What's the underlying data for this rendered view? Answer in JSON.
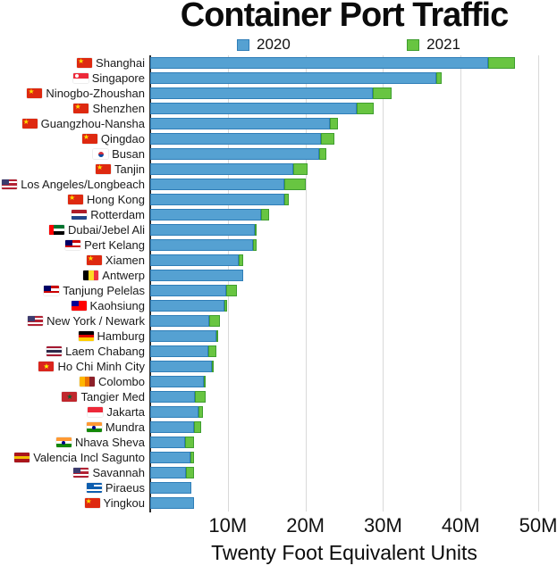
{
  "title": "Container Port Traffic",
  "xlabel": "Twenty Foot Equivalent Units",
  "legend": {
    "items": [
      {
        "label": "2020",
        "color": "#55A1D2",
        "border": "#2F7EB8"
      },
      {
        "label": "2021",
        "color": "#68C541",
        "border": "#3F9E2F"
      }
    ]
  },
  "colors": {
    "bar_2020_fill": "#55A1D2",
    "bar_2020_border": "#2F7EB8",
    "bar_2021_fill": "#68C541",
    "bar_2021_border": "#3F9E2F",
    "gridline": "#d9d9d9",
    "y_axis": "#2f2f2f"
  },
  "chart_data": {
    "type": "bar",
    "orientation": "horizontal",
    "title": "Container Port Traffic",
    "xlabel": "Twenty Foot Equivalent Units",
    "unit": "TEU (millions)",
    "xlim": [
      0,
      51.84
    ],
    "grid": true,
    "legend_position": "top",
    "x_ticks": [
      {
        "label": "10M",
        "value": 10
      },
      {
        "label": "20M",
        "value": 20
      },
      {
        "label": "30M",
        "value": 30
      },
      {
        "label": "40M",
        "value": 40
      },
      {
        "label": "50M",
        "value": 50
      }
    ],
    "categories": [
      "Shanghai",
      "Singapore",
      "Ninogbo-Zhoushan",
      "Shenzhen",
      "Guangzhou-Nansha",
      "Qingdao",
      "Busan",
      "Tanjin",
      "Los Angeles/Longbeach",
      "Hong Kong",
      "Rotterdam",
      "Dubai/Jebel Ali",
      "Pert Kelang",
      "Xiamen",
      "Antwerp",
      "Tanjung Pelelas",
      "Kaohsiung",
      "New York / Newark",
      "Hamburg",
      "Laem Chabang",
      "Ho Chi Minh City",
      "Colombo",
      "Tangier Med",
      "Jakarta",
      "Mundra",
      "Nhava Sheva",
      "Valencia Incl Sagunto",
      "Savannah",
      "Piraeus",
      "Yingkou"
    ],
    "flags": [
      "cn",
      "sg",
      "cn",
      "cn",
      "cn",
      "cn",
      "kr",
      "cn",
      "us",
      "cn",
      "nl",
      "ae",
      "my",
      "cn",
      "be",
      "my",
      "tw",
      "us",
      "de",
      "th",
      "vn",
      "lk",
      "ma",
      "id",
      "in",
      "in",
      "es",
      "us",
      "gr",
      "cn"
    ],
    "series": [
      {
        "name": "2020",
        "values": [
          43.5,
          36.9,
          28.7,
          26.6,
          23.2,
          22.0,
          21.8,
          18.4,
          17.3,
          17.3,
          14.3,
          13.5,
          13.2,
          11.4,
          12.0,
          9.8,
          9.6,
          7.6,
          8.5,
          7.5,
          7.9,
          6.9,
          5.8,
          6.2,
          5.7,
          4.5,
          5.2,
          4.6,
          5.3,
          5.7
        ]
      },
      {
        "name": "2021",
        "values": [
          47.0,
          37.5,
          31.1,
          28.8,
          24.2,
          23.7,
          22.7,
          20.3,
          20.1,
          17.8,
          15.3,
          13.7,
          13.7,
          12.0,
          12.0,
          11.2,
          9.9,
          9.0,
          8.7,
          8.5,
          8.0,
          7.2,
          7.2,
          6.8,
          6.6,
          5.6,
          5.6,
          5.6,
          5.3,
          5.2
        ]
      }
    ],
    "flag_specs": {
      "cn": {
        "type": "plain",
        "colors": [
          "#DE2910"
        ],
        "emblem": {
          "kind": "star",
          "color": "#FFDE00",
          "pos": "tl"
        }
      },
      "sg": {
        "type": "h",
        "colors": [
          "#ED2939",
          "#FFFFFF"
        ],
        "emblem": {
          "kind": "dot",
          "color": "#FFFFFF",
          "pos": "tl"
        }
      },
      "kr": {
        "type": "plain",
        "colors": [
          "#FFFFFF"
        ],
        "emblem": {
          "kind": "taegeuk"
        }
      },
      "us": {
        "type": "h",
        "colors": [
          "#B22234",
          "#FFFFFF",
          "#B22234",
          "#FFFFFF",
          "#B22234"
        ],
        "emblem": {
          "kind": "canton",
          "color": "#3C3B6E"
        }
      },
      "nl": {
        "type": "h",
        "colors": [
          "#AE1C28",
          "#FFFFFF",
          "#21468B"
        ]
      },
      "ae": {
        "type": "h",
        "colors": [
          "#00732F",
          "#FFFFFF",
          "#000000"
        ],
        "emblem": {
          "kind": "leftbar",
          "color": "#FF0000"
        }
      },
      "my": {
        "type": "h",
        "colors": [
          "#CC0001",
          "#FFFFFF",
          "#CC0001",
          "#FFFFFF"
        ],
        "emblem": {
          "kind": "canton",
          "color": "#010066"
        }
      },
      "be": {
        "type": "v",
        "colors": [
          "#000000",
          "#FDDA24",
          "#EF3340"
        ]
      },
      "tw": {
        "type": "plain",
        "colors": [
          "#FE0000"
        ],
        "emblem": {
          "kind": "canton",
          "color": "#000095"
        }
      },
      "de": {
        "type": "h",
        "colors": [
          "#000000",
          "#DD0000",
          "#FFCE00"
        ]
      },
      "th": {
        "type": "h",
        "colors": [
          "#A51931",
          "#F4F5F8",
          "#2D2A4A",
          "#F4F5F8",
          "#A51931"
        ]
      },
      "vn": {
        "type": "plain",
        "colors": [
          "#DA251D"
        ],
        "emblem": {
          "kind": "star",
          "color": "#FFFF00",
          "pos": "c"
        }
      },
      "lk": {
        "type": "v",
        "colors": [
          "#FFB700",
          "#EB7400",
          "#8D2029"
        ]
      },
      "ma": {
        "type": "plain",
        "colors": [
          "#C1272D"
        ],
        "emblem": {
          "kind": "star",
          "color": "#006233",
          "pos": "c"
        }
      },
      "id": {
        "type": "h",
        "colors": [
          "#ED2939",
          "#FFFFFF"
        ]
      },
      "in": {
        "type": "h",
        "colors": [
          "#FF9933",
          "#FFFFFF",
          "#138808"
        ],
        "emblem": {
          "kind": "dot",
          "color": "#000088",
          "pos": "c"
        }
      },
      "es": {
        "type": "h",
        "colors": [
          "#AA151B",
          "#F1BF00",
          "#AA151B"
        ]
      },
      "gr": {
        "type": "h",
        "colors": [
          "#0D5EAF",
          "#FFFFFF",
          "#0D5EAF",
          "#FFFFFF",
          "#0D5EAF"
        ],
        "emblem": {
          "kind": "canton",
          "color": "#0D5EAF"
        }
      }
    }
  }
}
